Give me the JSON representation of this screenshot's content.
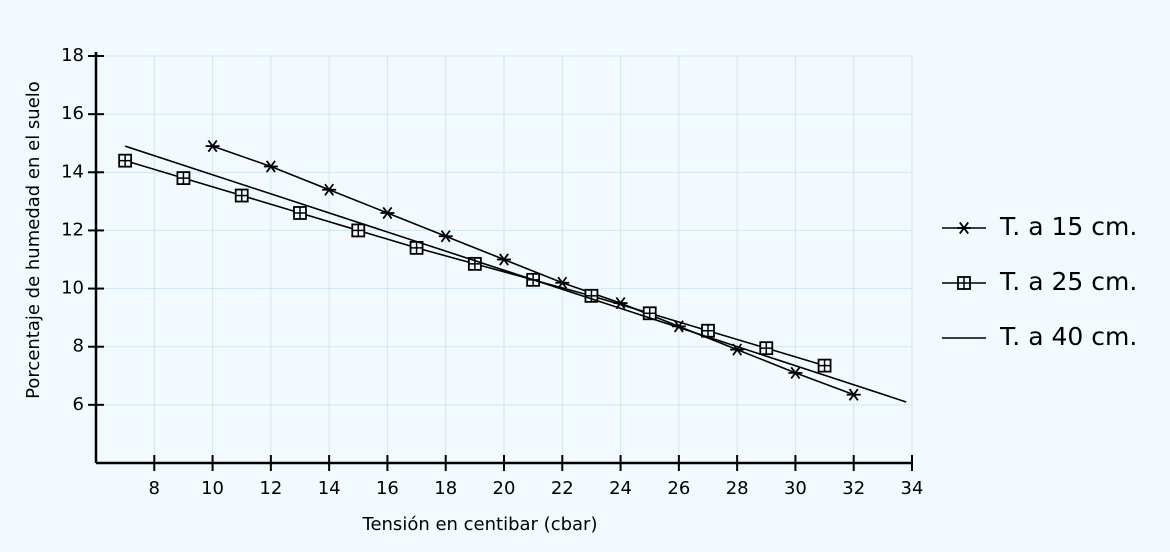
{
  "chart_data": {
    "type": "line",
    "xlabel": "Tensión en centibar  (cbar)",
    "ylabel": "Porcentaje de humedad en el suelo",
    "xlim": [
      6,
      34
    ],
    "xticks": [
      8,
      10,
      12,
      14,
      16,
      18,
      20,
      22,
      24,
      26,
      28,
      30,
      32,
      34
    ],
    "ylim": [
      4,
      18
    ],
    "yticks": [
      6,
      8,
      10,
      12,
      14,
      16,
      18
    ],
    "grid": true,
    "legend": "right",
    "series": [
      {
        "name": "T. a 15 cm.",
        "color": "#000000",
        "marker": "star",
        "x": [
          10,
          12,
          14,
          16,
          18,
          20,
          22,
          24,
          26,
          28,
          30,
          32
        ],
        "values": [
          14.9,
          14.2,
          13.4,
          12.6,
          11.8,
          11.0,
          10.2,
          9.5,
          8.7,
          7.9,
          7.1,
          6.35
        ]
      },
      {
        "name": "T. a 25 cm.",
        "color": "#000000",
        "marker": "square",
        "x": [
          7,
          9,
          11,
          13,
          15,
          17,
          19,
          21,
          23,
          25,
          27,
          29,
          31
        ],
        "values": [
          14.4,
          13.8,
          13.2,
          12.6,
          12.0,
          11.4,
          10.85,
          10.3,
          9.75,
          9.15,
          8.55,
          7.95,
          7.35
        ]
      },
      {
        "name": "T. a 40 cm.",
        "color": "#000000",
        "marker": "none",
        "x": [
          7,
          33.8
        ],
        "values": [
          14.9,
          6.1
        ]
      }
    ]
  }
}
